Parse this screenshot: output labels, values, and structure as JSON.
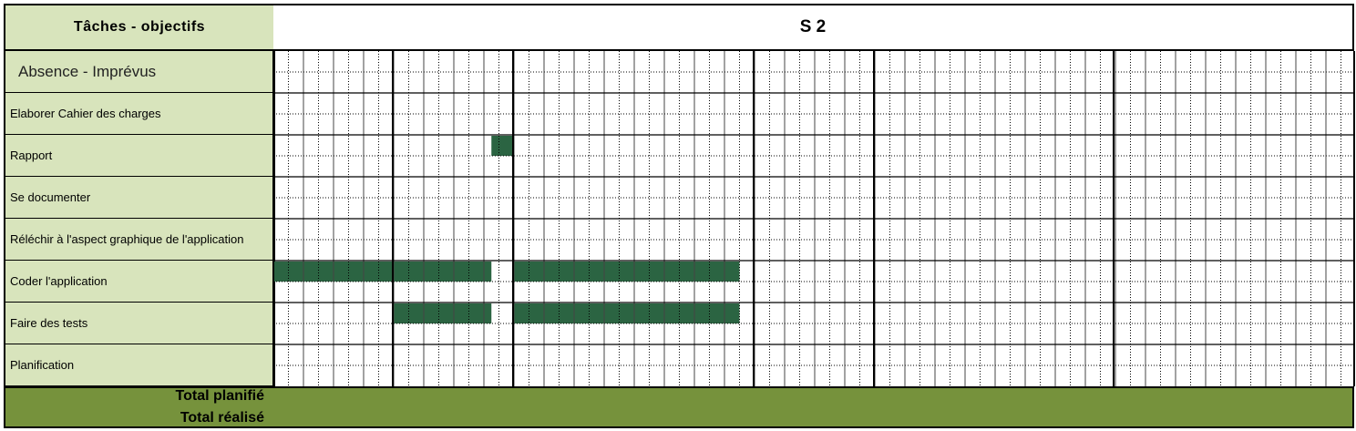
{
  "header": {
    "tasks_title": "Tâches - objectifs",
    "week_title": "S 2"
  },
  "absence": {
    "label": "Absence - Imprévus"
  },
  "tasks": [
    {
      "label": "Elaborer Cahier des charges",
      "top": [],
      "bottom": []
    },
    {
      "label": "Rapport",
      "top": [
        [
          7.25,
          8
        ]
      ],
      "bottom": []
    },
    {
      "label": "Se documenter",
      "top": [],
      "bottom": []
    },
    {
      "label": "Réléchir à l'aspect graphique de l'application",
      "top": [],
      "bottom": []
    },
    {
      "label": "Coder l'application",
      "top": [
        [
          0,
          7.25
        ],
        [
          8,
          15.5
        ]
      ],
      "bottom": []
    },
    {
      "label": "Faire des tests",
      "top": [
        [
          4,
          7.25
        ],
        [
          8,
          15.5
        ]
      ],
      "bottom": []
    },
    {
      "label": "Planification",
      "top": [],
      "bottom": []
    }
  ],
  "footer": {
    "total_planned": "Total planifié",
    "total_done": "Total réalisé"
  },
  "colors": {
    "label_bg": "#d8e4bc",
    "bar": "#2b6442",
    "totals_bg": "#76923c"
  }
}
